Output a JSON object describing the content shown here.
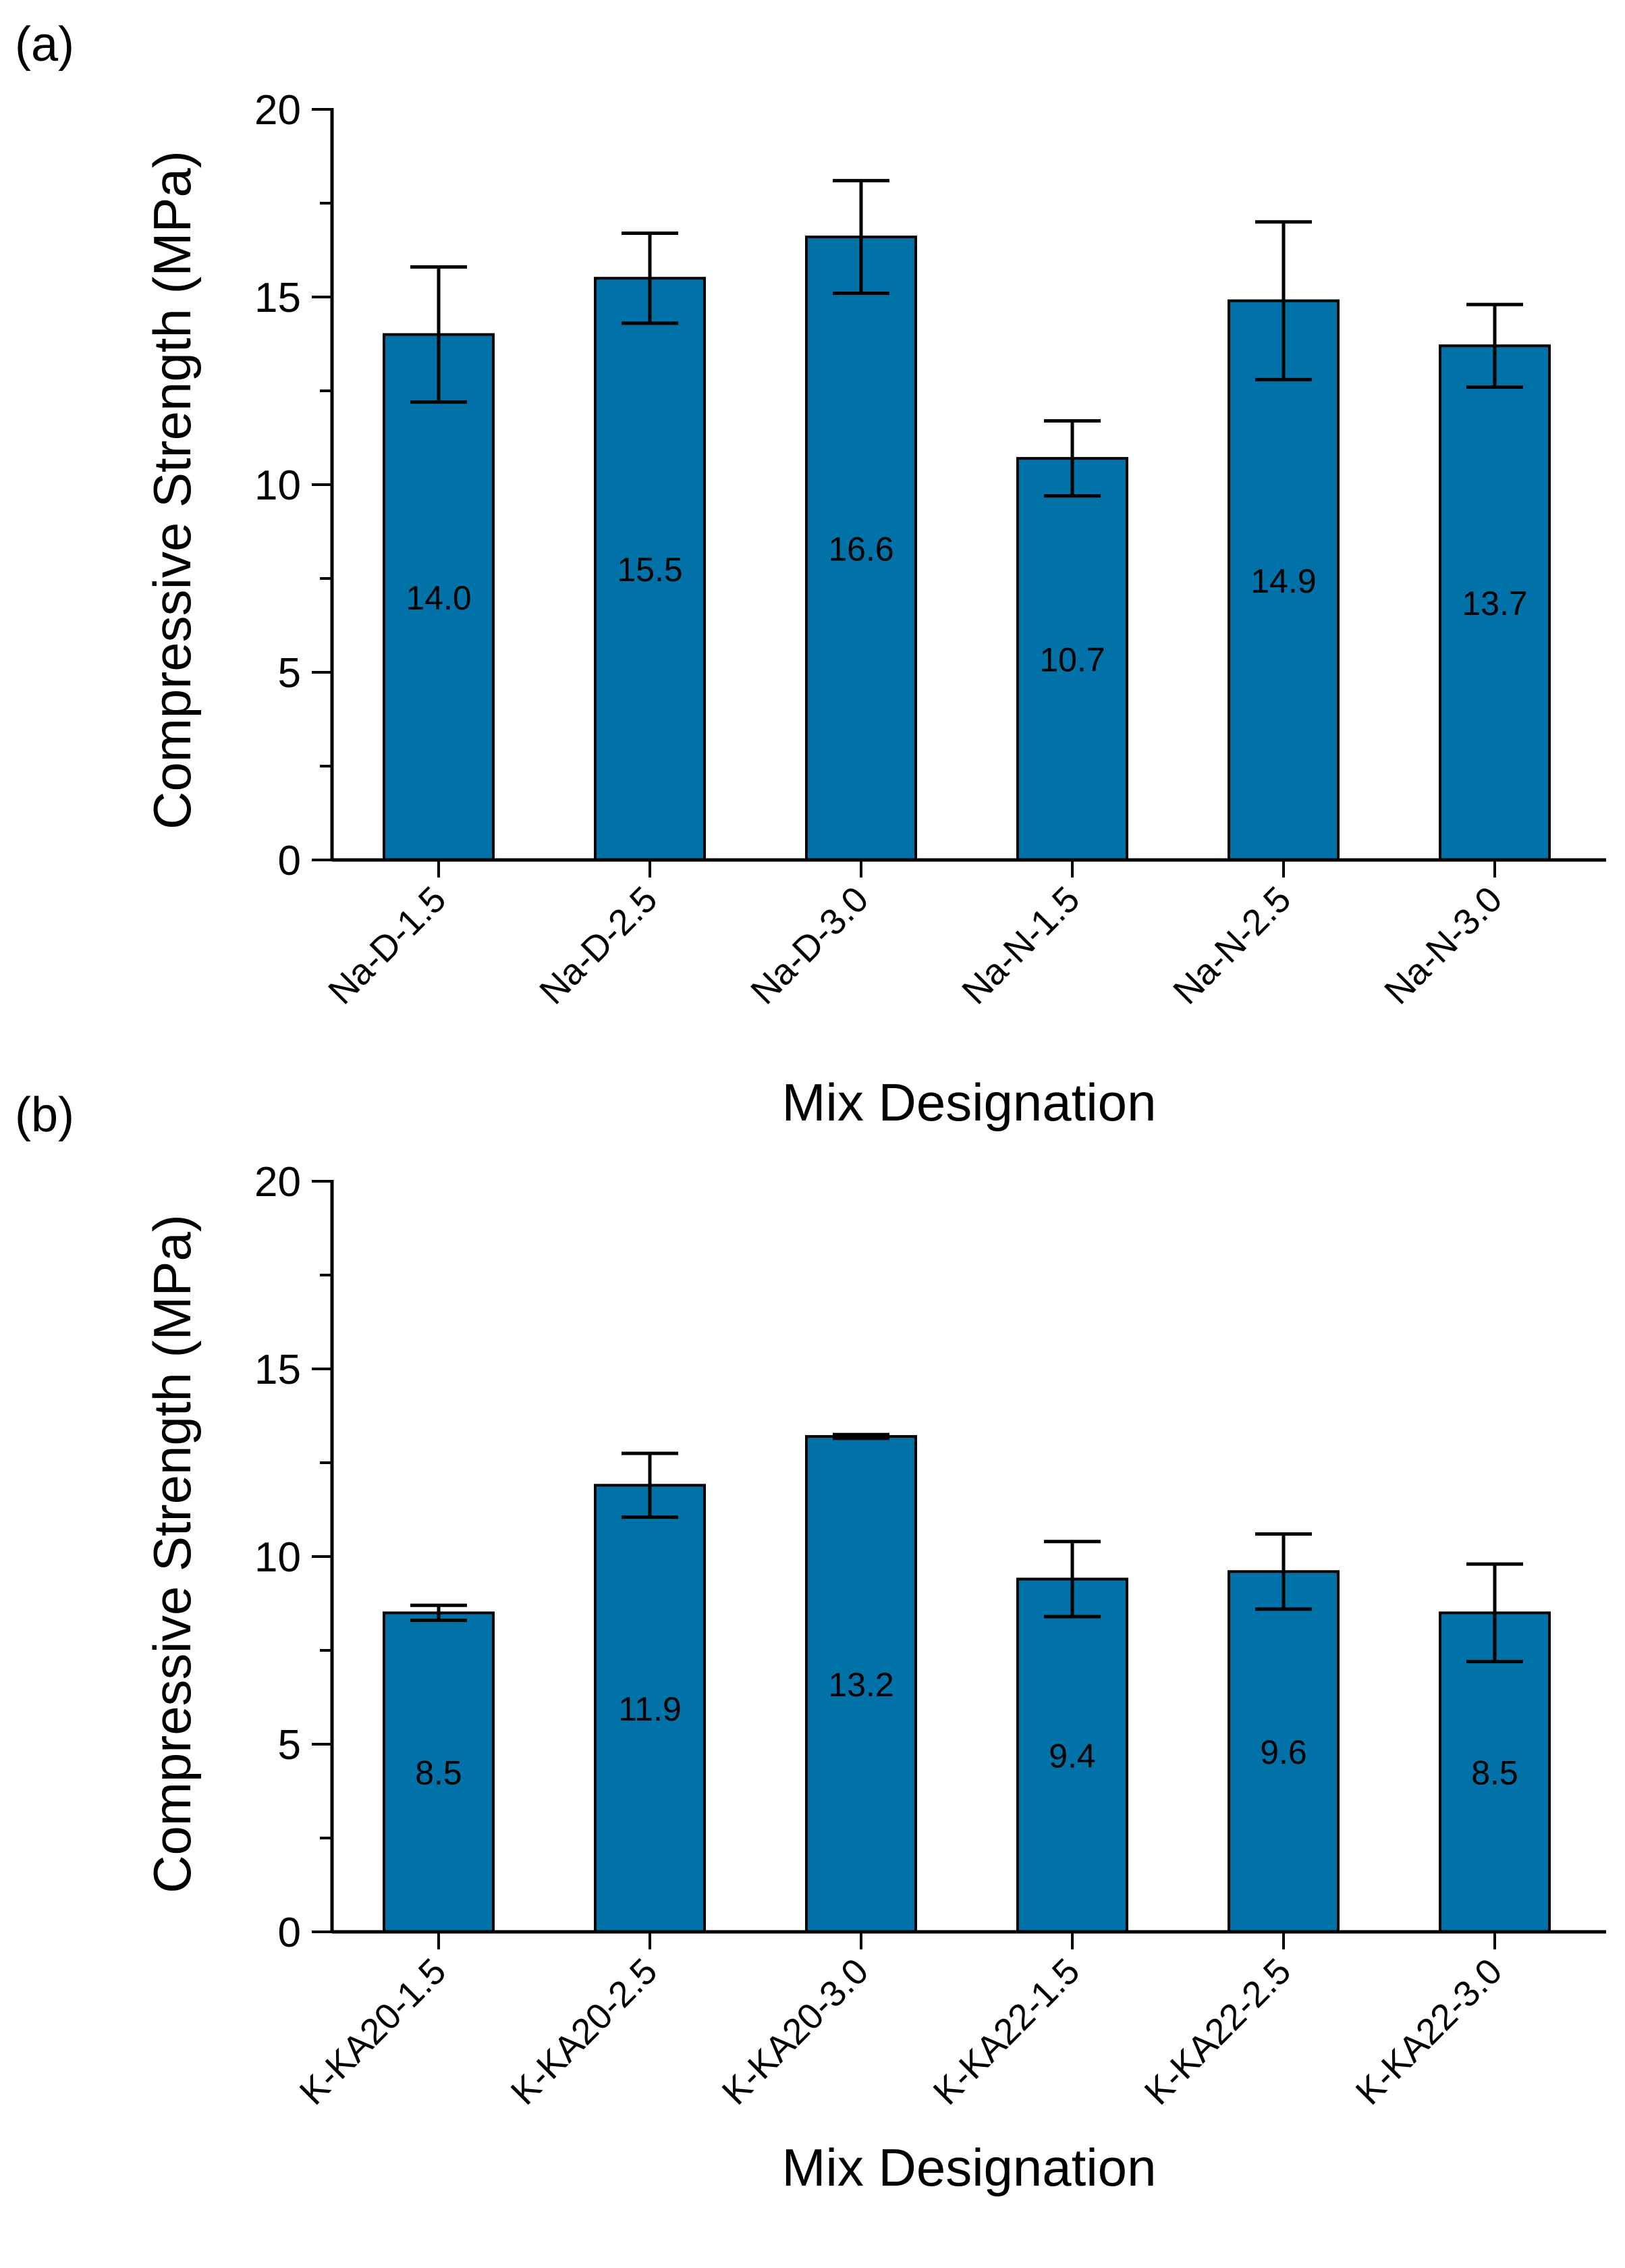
{
  "figure": {
    "bar_color": "#0072a8",
    "bar_edge_color": "#000000"
  },
  "chart_data": [
    {
      "type": "bar",
      "panel_label": "(a)",
      "xlabel": "Mix Designation",
      "ylabel": "Compressive Strength (MPa)",
      "ylim": [
        0,
        20
      ],
      "yticks": [
        0,
        5,
        10,
        15,
        20
      ],
      "ytick_labels": [
        "0",
        "5",
        "10",
        "15",
        "20"
      ],
      "grid": false,
      "categories": [
        "Na-D-1.5",
        "Na-D-2.5",
        "Na-D-3.0",
        "Na-N-1.5",
        "Na-N-2.5",
        "Na-N-3.0"
      ],
      "values": [
        14.0,
        15.5,
        16.6,
        10.7,
        14.9,
        13.7
      ],
      "value_labels": [
        "14.0",
        "15.5",
        "16.6",
        "10.7",
        "14.9",
        "13.7"
      ],
      "error": [
        1.8,
        1.2,
        1.5,
        1.0,
        2.1,
        1.1
      ]
    },
    {
      "type": "bar",
      "panel_label": "(b)",
      "xlabel": "Mix Designation",
      "ylabel": "Compressive Strength (MPa)",
      "ylim": [
        0,
        20
      ],
      "yticks": [
        0,
        5,
        10,
        15,
        20
      ],
      "ytick_labels": [
        "0",
        "5",
        "10",
        "15",
        "20"
      ],
      "grid": false,
      "categories": [
        "K-KA20-1.5",
        "K-KA20-2.5",
        "K-KA20-3.0",
        "K-KA22-1.5",
        "K-KA22-2.5",
        "K-KA22-3.0"
      ],
      "values": [
        8.5,
        11.9,
        13.2,
        9.4,
        9.6,
        8.5
      ],
      "value_labels": [
        "8.5",
        "11.9",
        "13.2",
        "9.4",
        "9.6",
        "8.5"
      ],
      "error": [
        0.2,
        0.85,
        0.05,
        1.0,
        1.0,
        1.3
      ]
    }
  ]
}
